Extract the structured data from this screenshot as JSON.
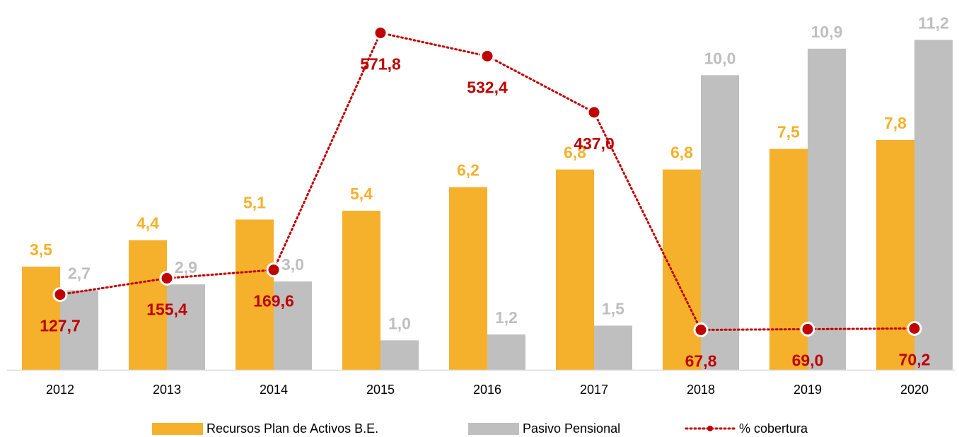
{
  "chart_data": {
    "type": "bar",
    "categories": [
      "2012",
      "2013",
      "2014",
      "2015",
      "2016",
      "2017",
      "2018",
      "2019",
      "2020"
    ],
    "series": [
      {
        "name": "Recursos Plan de Activos B.E.",
        "color": "#f5b12b",
        "type": "bar",
        "values": [
          3.5,
          4.4,
          5.1,
          5.4,
          6.2,
          6.8,
          6.8,
          7.5,
          7.8
        ],
        "value_labels": [
          "3,5",
          "4,4",
          "5,1",
          "5,4",
          "6,2",
          "6,8",
          "6,8",
          "7,5",
          "7,8"
        ]
      },
      {
        "name": "Pasivo Pensional",
        "color": "#bfbfbf",
        "type": "bar",
        "values": [
          2.7,
          2.9,
          3.0,
          1.0,
          1.2,
          1.5,
          10.0,
          10.9,
          11.2
        ],
        "value_labels": [
          "2,7",
          "2,9",
          "3,0",
          "1,0",
          "1,2",
          "1,5",
          "10,0",
          "10,9",
          "11,2"
        ]
      },
      {
        "name": "% cobertura",
        "color": "#c00000",
        "type": "line",
        "axis": "y2",
        "values": [
          127.7,
          155.4,
          169.6,
          571.8,
          532.4,
          437.0,
          67.8,
          69.0,
          70.2
        ],
        "value_labels": [
          "127,7",
          "155,4",
          "169,6",
          "571,8",
          "532,4",
          "437,0",
          "67,8",
          "69,0",
          "70,2"
        ]
      }
    ],
    "ylim": [
      0,
      12
    ],
    "y2lim": [
      0,
      600
    ],
    "legend": "bottom"
  }
}
